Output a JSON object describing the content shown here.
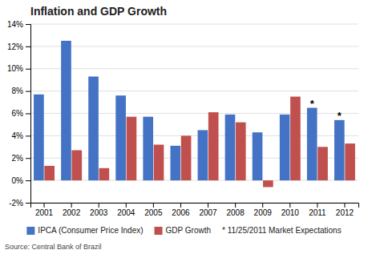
{
  "chart_data": {
    "type": "bar",
    "title": "Inflation and GDP Growth",
    "categories": [
      "2001",
      "2002",
      "2003",
      "2004",
      "2005",
      "2006",
      "2007",
      "2008",
      "2009",
      "2010",
      "2011",
      "2012"
    ],
    "series": [
      {
        "name": "IPCA (Consumer Price Index)",
        "color": "#4472C4",
        "values": [
          7.7,
          12.5,
          9.3,
          7.6,
          5.7,
          3.1,
          4.5,
          5.9,
          4.3,
          5.9,
          6.5,
          5.4
        ]
      },
      {
        "name": "GDP Growth",
        "color": "#C0504D",
        "values": [
          1.3,
          2.7,
          1.1,
          5.7,
          3.2,
          4.0,
          6.1,
          5.2,
          -0.6,
          7.5,
          3.0,
          3.3
        ]
      }
    ],
    "ylim": [
      -2,
      14
    ],
    "yticks": [
      {
        "value": -2,
        "label": "-2%"
      },
      {
        "value": 0,
        "label": "0%"
      },
      {
        "value": 2,
        "label": "2%"
      },
      {
        "value": 4,
        "label": "4%"
      },
      {
        "value": 6,
        "label": "6%"
      },
      {
        "value": 8,
        "label": "8%"
      },
      {
        "value": 10,
        "label": "10%"
      },
      {
        "value": 12,
        "label": "12%"
      },
      {
        "value": 14,
        "label": "14%"
      }
    ],
    "grid": true,
    "legend": "bottom",
    "annotations": [
      {
        "text": "*",
        "x": "2011",
        "series": "IPCA (Consumer Price Index)",
        "y": 6.5
      },
      {
        "text": "*",
        "x": "2012",
        "series": "IPCA (Consumer Price Index)",
        "y": 5.4
      }
    ],
    "footnote": "* 11/25/2011 Market Expectations",
    "source": "Source: Central Bank of Brazil"
  }
}
